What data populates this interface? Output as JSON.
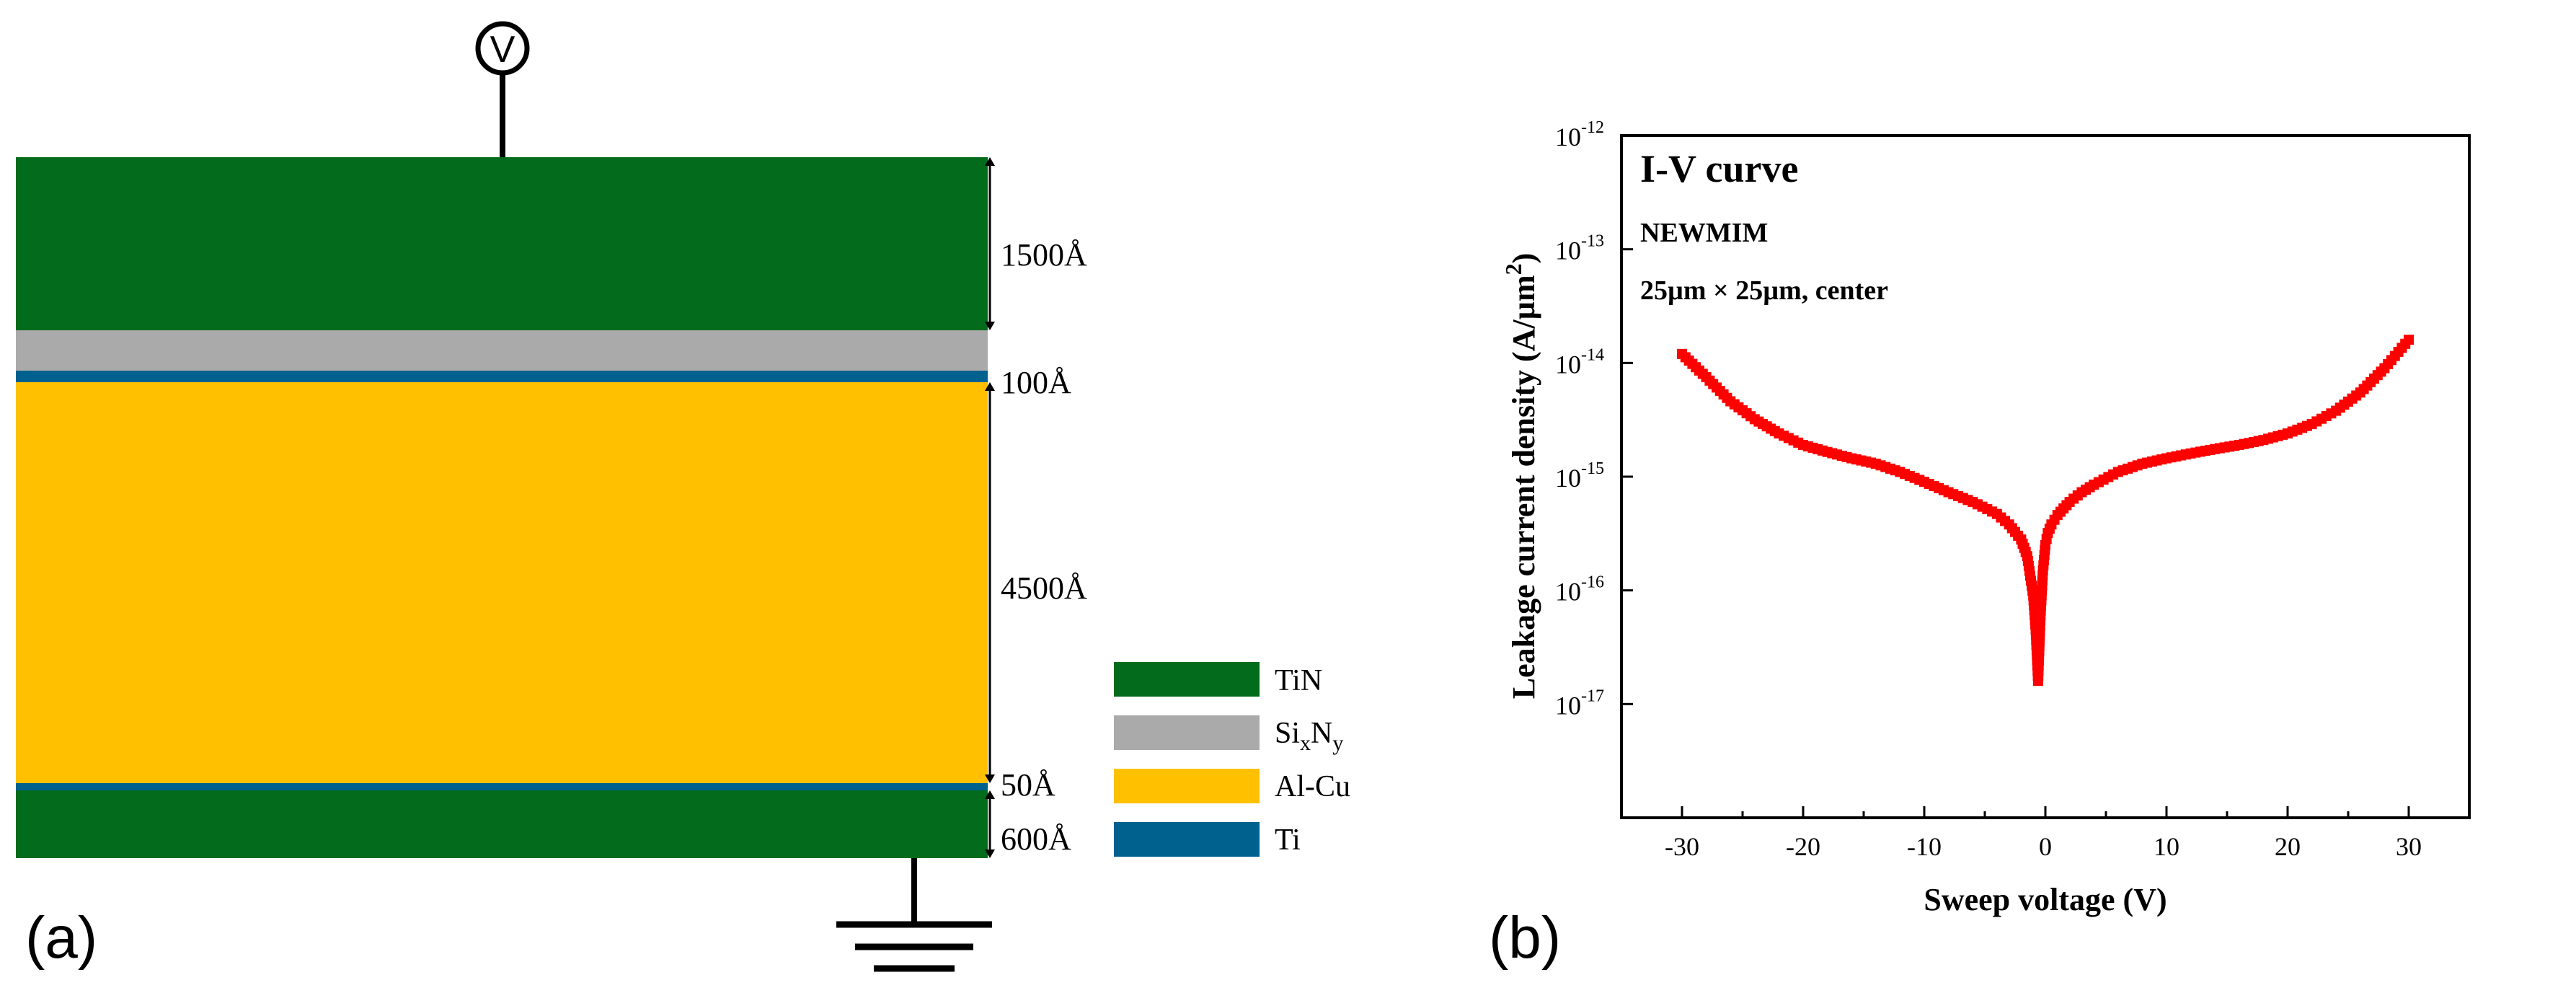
{
  "panel_a": {
    "label": "(a)",
    "source_symbol": "V",
    "layers": [
      {
        "material": "TiN",
        "color": "#026b1c"
      },
      {
        "material": "SixNy",
        "color": "#aaaaaa"
      },
      {
        "material": "Ti",
        "color": "#00618f"
      },
      {
        "material": "Al-Cu",
        "color": "#ffc000"
      },
      {
        "material": "Ti",
        "color": "#00618f"
      },
      {
        "material": "TiN",
        "color": "#026b1c"
      }
    ],
    "thickness_labels": [
      "1500Å",
      "100Å",
      "4500Å",
      "50Å",
      "600Å"
    ],
    "legend": [
      {
        "text": "TiN",
        "color": "#026b1c"
      },
      {
        "base": "Si",
        "sub1": "x",
        "mid": "N",
        "sub2": "y",
        "color": "#aaaaaa"
      },
      {
        "text": "Al-Cu",
        "color": "#ffc000"
      },
      {
        "text": "Ti",
        "color": "#00618f"
      }
    ]
  },
  "panel_b": {
    "label": "(b)",
    "ylabel_main": "Leakage current density (A/µm",
    "ylabel_sup": "2",
    "ylabel_end": ")",
    "annotations": [
      "I-V curve",
      "NEWMIM",
      "25µm × 25µm, center"
    ]
  },
  "chart_data": {
    "type": "scatter",
    "title": "I-V curve",
    "xlabel": "Sweep voltage (V)",
    "ylabel": "Leakage current density (A/µm²)",
    "xlim": [
      -35,
      35
    ],
    "ylim": [
      1e-18,
      1e-12
    ],
    "yscale": "log",
    "x_ticks": [
      -30,
      -20,
      -10,
      0,
      10,
      20,
      30
    ],
    "x_tick_labels": [
      "-30",
      "-20",
      "-10",
      "0",
      "10",
      "20",
      "30"
    ],
    "y_ticks": [
      -17,
      -16,
      -15,
      -14,
      -13,
      -12
    ],
    "y_tick_labels": [
      {
        "base": "10",
        "exp": "-17"
      },
      {
        "base": "10",
        "exp": "-16"
      },
      {
        "base": "10",
        "exp": "-15"
      },
      {
        "base": "10",
        "exp": "-14"
      },
      {
        "base": "10",
        "exp": "-13"
      },
      {
        "base": "10",
        "exp": "-12"
      }
    ],
    "series": [
      {
        "color": "#ff0000",
        "marker": "square",
        "x": [
          -30,
          -28,
          -26,
          -24,
          -22,
          -20,
          -18,
          -16,
          -14,
          -12,
          -10,
          -8,
          -6,
          -4,
          -3,
          -2,
          -1.5,
          -1,
          -0.8,
          -0.6,
          -0.4,
          -0.2,
          0,
          0.2,
          0.5,
          1,
          2,
          3,
          4,
          6,
          8,
          10,
          12,
          14,
          16,
          18,
          20,
          22,
          24,
          26,
          28,
          30
        ],
        "y": [
          1.2e-14,
          7.5e-15,
          4.6e-15,
          3.2e-15,
          2.4e-15,
          1.9e-15,
          1.65e-15,
          1.45e-15,
          1.3e-15,
          1.1e-15,
          9e-16,
          7.3e-16,
          6e-16,
          4.7e-16,
          3.8e-16,
          2.8e-16,
          2e-16,
          9e-17,
          4.5e-17,
          1.6e-17,
          6e-17,
          1.5e-16,
          2.5e-16,
          3.2e-16,
          3.8e-16,
          4.6e-16,
          6e-16,
          7.3e-16,
          8.5e-16,
          1.1e-15,
          1.3e-15,
          1.45e-15,
          1.6e-15,
          1.75e-15,
          1.9e-15,
          2.1e-15,
          2.4e-15,
          2.9e-15,
          3.8e-15,
          5.5e-15,
          9e-15,
          1.6e-14
        ]
      }
    ]
  }
}
